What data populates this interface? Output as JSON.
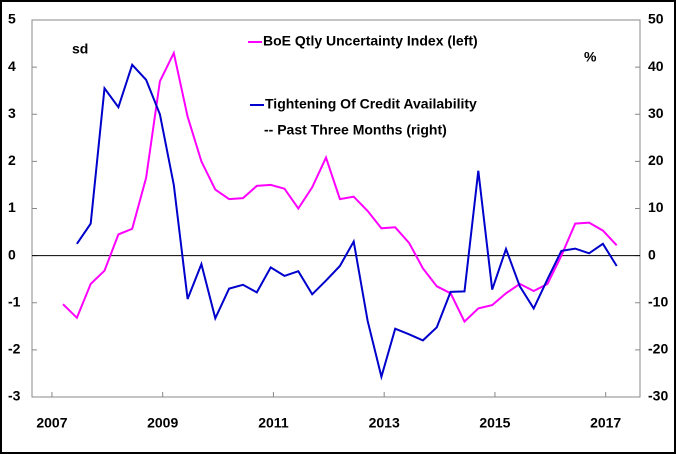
{
  "chart_data": {
    "type": "line",
    "series": [
      {
        "name": "BoE Qtly Uncertainty Index (left)",
        "color": "#ff00ff",
        "axis": "y",
        "x": [
          2007.2,
          2007.45,
          2007.7,
          2007.95,
          2008.2,
          2008.45,
          2008.7,
          2008.95,
          2009.2,
          2009.45,
          2009.7,
          2009.95,
          2010.2,
          2010.45,
          2010.7,
          2010.95,
          2011.2,
          2011.45,
          2011.7,
          2011.95,
          2012.2,
          2012.45,
          2012.7,
          2012.95,
          2013.2,
          2013.45,
          2013.7,
          2013.95,
          2014.2,
          2014.45,
          2014.7,
          2014.95,
          2015.2,
          2015.45,
          2015.7,
          2015.95,
          2016.2,
          2016.45,
          2016.7,
          2016.95,
          2017.2
        ],
        "values": [
          -1.03,
          -1.32,
          -0.6,
          -0.32,
          0.45,
          0.57,
          1.65,
          3.7,
          4.3,
          2.95,
          2.0,
          1.4,
          1.2,
          1.22,
          1.48,
          1.5,
          1.42,
          1.0,
          1.45,
          2.08,
          1.2,
          1.25,
          0.95,
          0.58,
          0.6,
          0.27,
          -0.27,
          -0.65,
          -0.8,
          -1.4,
          -1.12,
          -1.05,
          -0.8,
          -0.6,
          -0.75,
          -0.6,
          0.0,
          0.68,
          0.7,
          0.53,
          0.22
        ]
      },
      {
        "name": "Tightening Of Credit Availability",
        "color": "#0000cc",
        "axis": "y2",
        "x": [
          2007.45,
          2007.7,
          2007.95,
          2008.2,
          2008.45,
          2008.7,
          2008.95,
          2009.2,
          2009.45,
          2009.7,
          2009.95,
          2010.2,
          2010.45,
          2010.7,
          2010.95,
          2011.2,
          2011.45,
          2011.7,
          2011.95,
          2012.2,
          2012.45,
          2012.7,
          2012.95,
          2013.2,
          2013.45,
          2013.7,
          2013.95,
          2014.2,
          2014.45,
          2014.7,
          2014.95,
          2015.2,
          2015.45,
          2015.7,
          2015.95,
          2016.2,
          2016.45,
          2016.7,
          2016.95,
          2017.2
        ],
        "values": [
          2.5,
          6.8,
          35.5,
          31.5,
          40.5,
          37.3,
          30,
          15,
          -9.2,
          -1.8,
          -13.3,
          -7,
          -6.2,
          -7.8,
          -2.5,
          -4.3,
          -3.3,
          -8.2,
          -5.3,
          -2.2,
          3,
          -13.8,
          -25.7,
          -15.5,
          -16.7,
          -18,
          -15.2,
          -7.7,
          -7.6,
          18,
          -7.2,
          1.4,
          -6.5,
          -11.2,
          -5,
          1,
          1.5,
          0.5,
          2.5,
          -2.2
        ]
      }
    ],
    "legend_note": "-- Past Three Months (right)",
    "y_unit": "sd",
    "y2_unit": "%",
    "xlim": [
      2006.64,
      2017.62
    ],
    "xticks": [
      2007,
      2009,
      2011,
      2013,
      2015,
      2017
    ],
    "ylim": [
      -3,
      5
    ],
    "yticks": [
      -3,
      -2,
      -1,
      0,
      1,
      2,
      3,
      4,
      5
    ],
    "y2lim": [
      -30,
      50
    ],
    "y2ticks": [
      -30,
      -20,
      -10,
      0,
      10,
      20,
      30,
      40,
      50
    ],
    "zero_line": true
  }
}
